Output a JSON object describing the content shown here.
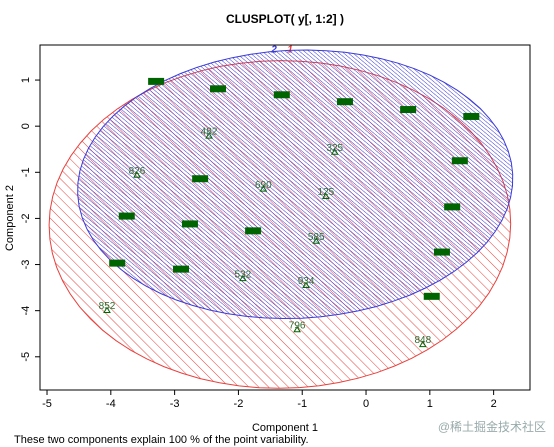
{
  "chart_data": {
    "type": "clusplot",
    "title": "CLUSPLOT( y[, 1:2] )",
    "x_label": "Component 1",
    "y_label": "Component 2",
    "footnote": "These two components explain 100 % of the point variability.",
    "watermark": "@稀土掘金技术社区",
    "xlim": [
      -5.11,
      2.57
    ],
    "ylim": [
      -5.72,
      1.76
    ],
    "xticks": [
      -5,
      -4,
      -3,
      -2,
      -1,
      0,
      1,
      2
    ],
    "yticks": [
      -5,
      -4,
      -3,
      -2,
      -1,
      0,
      1
    ],
    "clusters": [
      {
        "name": "1",
        "color": "#e8403c",
        "center": [
          -1.35,
          -2.13
        ],
        "axes": [
          3.62,
          3.55
        ],
        "angle": 10
      },
      {
        "name": "2",
        "color": "#3a3ad8",
        "center": [
          -1.11,
          -1.26
        ],
        "axes": [
          3.42,
          2.9
        ],
        "angle": 8
      }
    ],
    "points": {
      "x": [
        -3.29,
        -2.32,
        -1.32,
        -0.33,
        0.66,
        1.65,
        -2.46,
        -0.49,
        1.47,
        -3.59,
        -2.6,
        -1.61,
        -0.63,
        1.35,
        -3.75,
        -2.76,
        -1.77,
        -0.78,
        1.19,
        -3.9,
        -2.9,
        -1.93,
        -0.94,
        1.03,
        -4.06,
        -1.08,
        0.89
      ],
      "y": [
        0.96,
        0.8,
        0.67,
        0.52,
        0.35,
        0.2,
        -0.15,
        -0.5,
        -0.76,
        -1.0,
        -1.15,
        -1.3,
        -1.46,
        -1.76,
        -1.96,
        -2.13,
        -2.28,
        -2.43,
        -2.74,
        -2.98,
        -3.11,
        -3.24,
        -3.39,
        -3.7,
        -3.93,
        -4.35,
        -4.67
      ],
      "labels": [
        null,
        null,
        null,
        null,
        null,
        null,
        "482",
        "325",
        null,
        "826",
        null,
        "690",
        "125",
        null,
        null,
        null,
        null,
        "585",
        null,
        null,
        null,
        "532",
        "934",
        null,
        "852",
        "796",
        "848"
      ],
      "color": "#006400"
    }
  }
}
